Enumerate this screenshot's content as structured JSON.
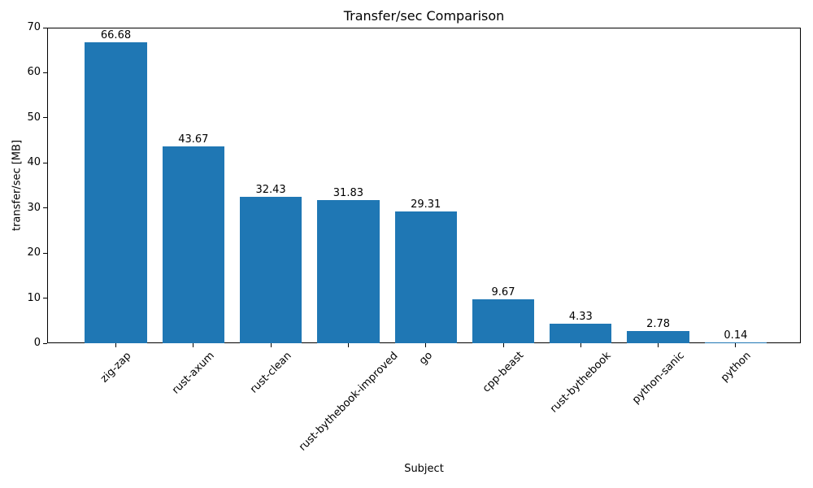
{
  "chart_data": {
    "type": "bar",
    "title": "Transfer/sec Comparison",
    "xlabel": "Subject",
    "ylabel": "transfer/sec [MB]",
    "categories": [
      "zig-zap",
      "rust-axum",
      "rust-clean",
      "rust-bythebook-improved",
      "go",
      "cpp-beast",
      "rust-bythebook",
      "python-sanic",
      "python"
    ],
    "values": [
      66.68,
      43.67,
      32.43,
      31.83,
      29.31,
      9.67,
      4.33,
      2.78,
      0.14
    ],
    "bar_labels": [
      "66.68",
      "43.67",
      "32.43",
      "31.83",
      "29.31",
      "9.67",
      "4.33",
      "2.78",
      "0.14"
    ],
    "ylim": [
      0,
      70
    ],
    "yticks": [
      0,
      10,
      20,
      30,
      40,
      50,
      60,
      70
    ],
    "xtick_rotation_deg": 45,
    "grid": false,
    "legend": "none",
    "bar_color": "#1f77b4",
    "text_color": "#000000",
    "spine_color": "#000000"
  }
}
